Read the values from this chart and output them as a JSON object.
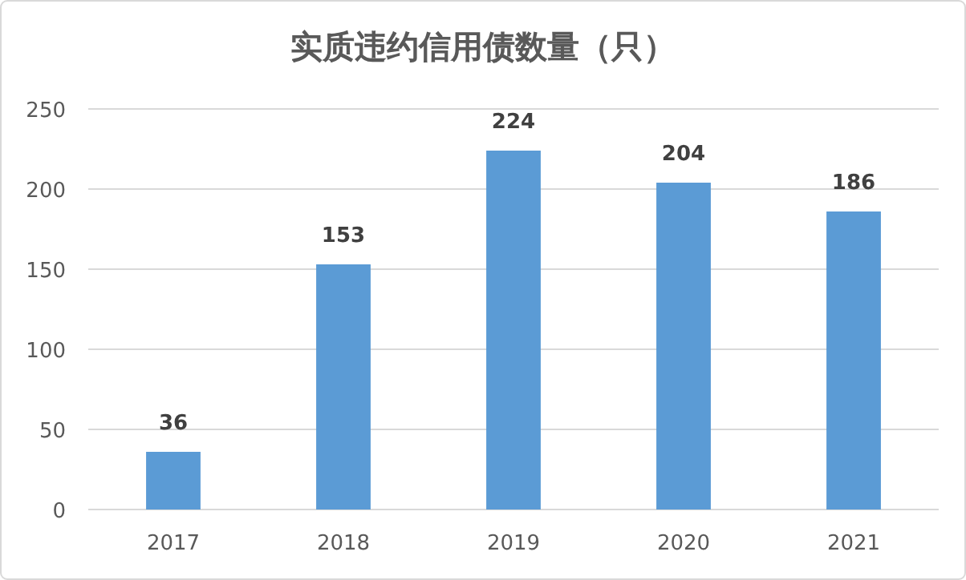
{
  "chart_data": {
    "type": "bar",
    "title": "实质违约信用债数量（只）",
    "categories": [
      "2017",
      "2018",
      "2019",
      "2020",
      "2021"
    ],
    "values": [
      36,
      153,
      224,
      204,
      186
    ],
    "color": "#5b9bd5",
    "ylim": [
      0,
      250
    ],
    "yticks": [
      0,
      50,
      100,
      150,
      200,
      250
    ],
    "grid": "y",
    "data_labels": true
  }
}
